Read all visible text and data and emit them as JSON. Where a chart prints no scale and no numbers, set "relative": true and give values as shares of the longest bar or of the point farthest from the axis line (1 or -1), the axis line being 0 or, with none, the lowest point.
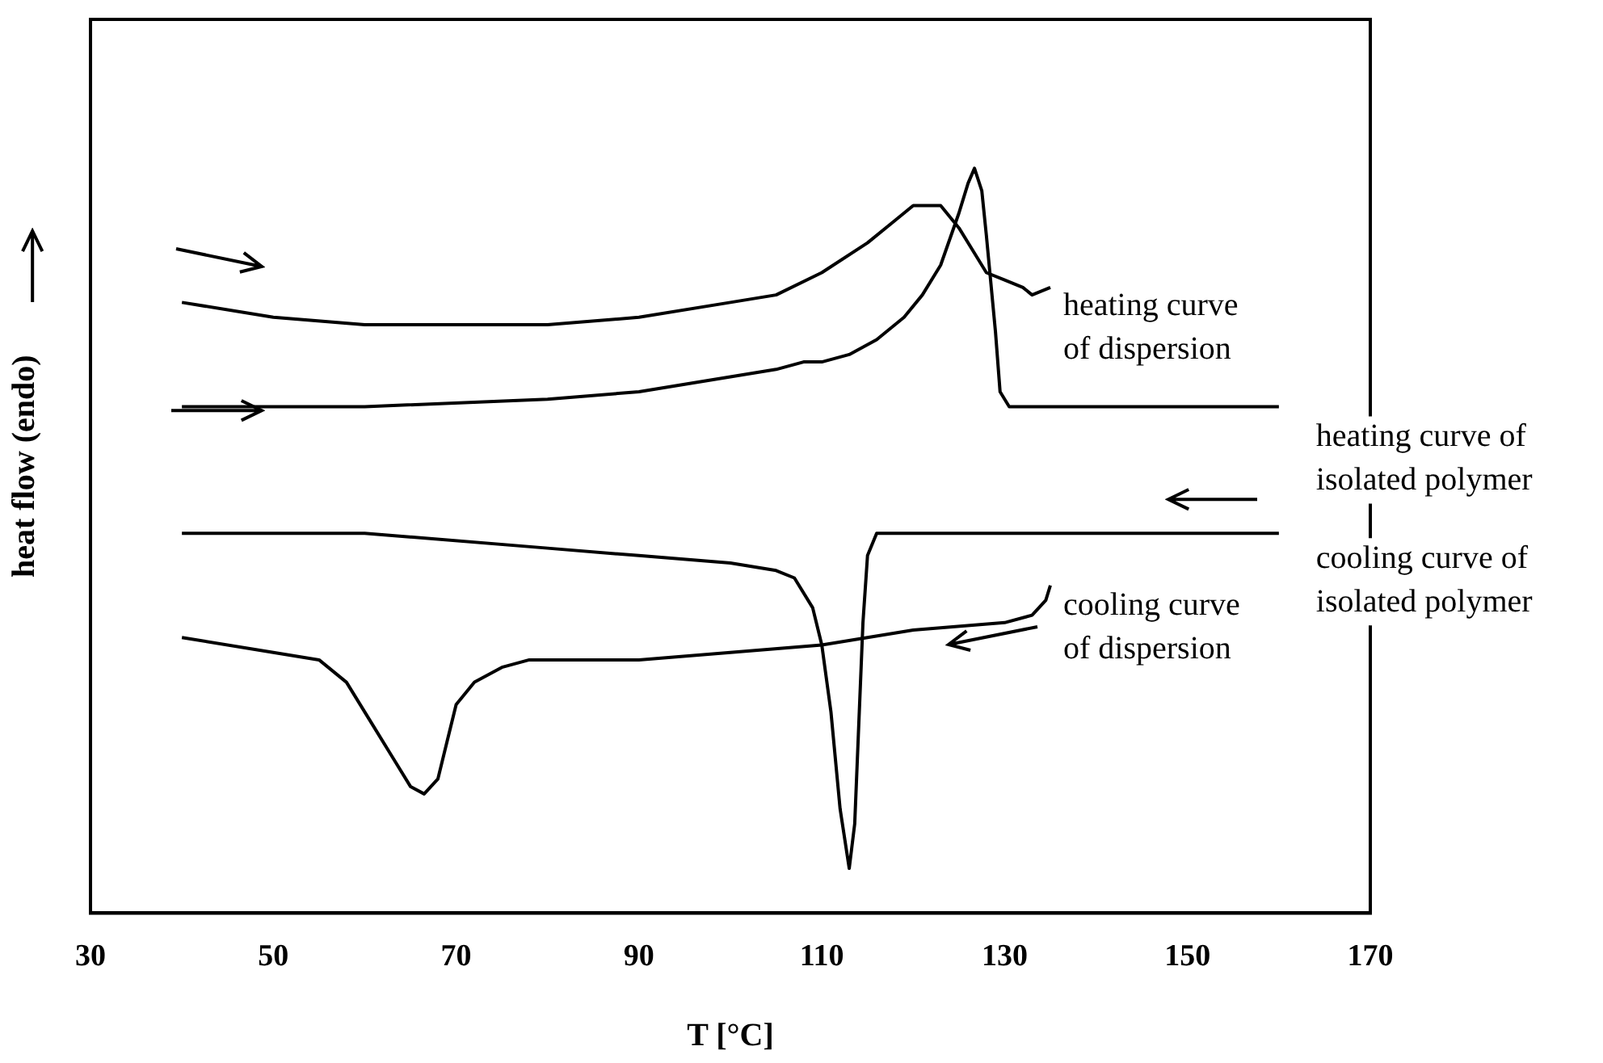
{
  "chart_data": {
    "type": "line",
    "relative": true,
    "xlabel": "T [°C]",
    "ylabel": "heat flow (endo)",
    "xlim": [
      30,
      170
    ],
    "xticks": [
      30,
      50,
      70,
      90,
      110,
      130,
      150,
      170
    ],
    "grid": false,
    "series": [
      {
        "name": "heating curve\nof dispersion",
        "color": "#000000",
        "x": [
          40,
          50,
          60,
          70,
          80,
          90,
          100,
          105,
          110,
          115,
          118,
          120,
          121.5,
          123,
          125,
          127,
          128,
          130,
          132,
          133,
          135
        ],
        "values": [
          0.82,
          0.8,
          0.79,
          0.79,
          0.79,
          0.8,
          0.82,
          0.83,
          0.86,
          0.9,
          0.93,
          0.95,
          0.95,
          0.95,
          0.92,
          0.88,
          0.86,
          0.85,
          0.84,
          0.83,
          0.84
        ]
      },
      {
        "name": "heating curve of\nisolated polymer",
        "color": "#000000",
        "x": [
          40,
          60,
          80,
          90,
          100,
          105,
          108,
          110,
          113,
          116,
          119,
          121,
          123,
          125,
          126,
          126.7,
          127.5,
          128,
          129,
          129.5,
          130.5,
          135,
          160
        ],
        "values": [
          0.68,
          0.68,
          0.69,
          0.7,
          0.72,
          0.73,
          0.74,
          0.74,
          0.75,
          0.77,
          0.8,
          0.83,
          0.87,
          0.94,
          0.98,
          1.0,
          0.97,
          0.91,
          0.78,
          0.7,
          0.68,
          0.68,
          0.68
        ]
      },
      {
        "name": "cooling curve of\nisolated polymer",
        "color": "#000000",
        "x": [
          40,
          60,
          80,
          90,
          100,
          105,
          107,
          109,
          110,
          111,
          112,
          113,
          113.6,
          114,
          114.5,
          115,
          116,
          120,
          160
        ],
        "values": [
          0.51,
          0.51,
          0.49,
          0.48,
          0.47,
          0.46,
          0.45,
          0.41,
          0.36,
          0.27,
          0.14,
          0.06,
          0.12,
          0.24,
          0.39,
          0.48,
          0.51,
          0.51,
          0.51
        ]
      },
      {
        "name": "cooling curve\nof dispersion",
        "color": "#000000",
        "x": [
          40,
          50,
          55,
          58,
          61,
          63,
          65,
          66.5,
          68,
          69,
          70,
          72,
          75,
          78,
          90,
          100,
          110,
          120,
          130,
          133,
          134.5,
          135
        ],
        "values": [
          0.37,
          0.35,
          0.34,
          0.31,
          0.25,
          0.21,
          0.17,
          0.16,
          0.18,
          0.23,
          0.28,
          0.31,
          0.33,
          0.34,
          0.34,
          0.35,
          0.36,
          0.38,
          0.39,
          0.4,
          0.42,
          0.44
        ]
      }
    ]
  }
}
